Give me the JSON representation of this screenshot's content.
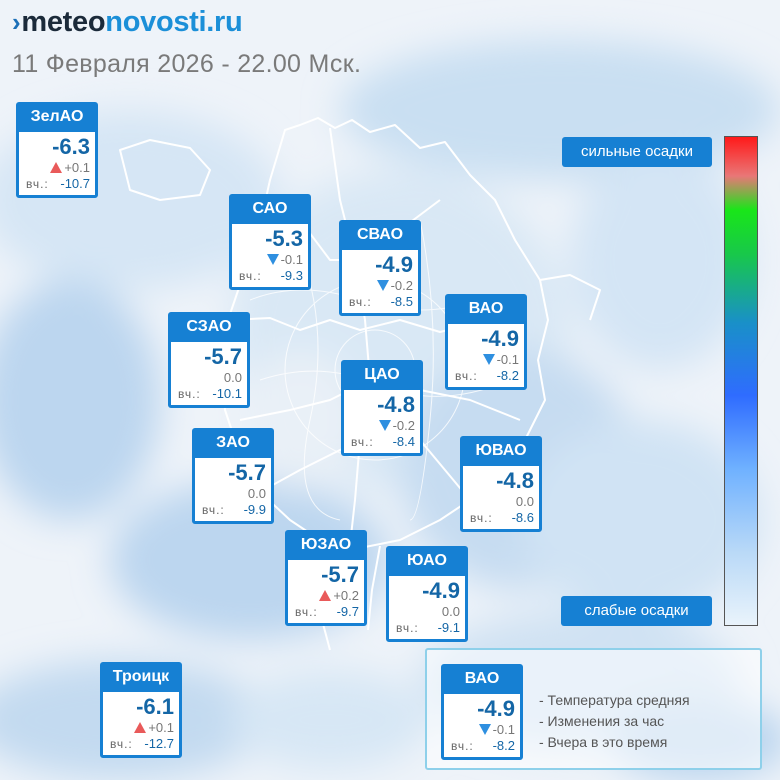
{
  "header": {
    "logo_prefix": "meteo",
    "logo_suffix": "novosti.ru",
    "datetime": "11 Февраля 2026 - 22.00 Мск."
  },
  "yesterday_label": "вч.:",
  "districts": [
    {
      "name": "ЗелАО",
      "temp": "-6.3",
      "trend": "up",
      "change": "+0.1",
      "yesterday": "-10.7"
    },
    {
      "name": "САО",
      "temp": "-5.3",
      "trend": "down",
      "change": "-0.1",
      "yesterday": "-9.3"
    },
    {
      "name": "СВАО",
      "temp": "-4.9",
      "trend": "down",
      "change": "-0.2",
      "yesterday": "-8.5"
    },
    {
      "name": "ВАО",
      "temp": "-4.9",
      "trend": "down",
      "change": "-0.1",
      "yesterday": "-8.2"
    },
    {
      "name": "СЗАО",
      "temp": "-5.7",
      "trend": "none",
      "change": "0.0",
      "yesterday": "-10.1"
    },
    {
      "name": "ЦАО",
      "temp": "-4.8",
      "trend": "down",
      "change": "-0.2",
      "yesterday": "-8.4"
    },
    {
      "name": "ЗАО",
      "temp": "-5.7",
      "trend": "none",
      "change": "0.0",
      "yesterday": "-9.9"
    },
    {
      "name": "ЮВАО",
      "temp": "-4.8",
      "trend": "none",
      "change": "0.0",
      "yesterday": "-8.6"
    },
    {
      "name": "ЮЗАО",
      "temp": "-5.7",
      "trend": "up",
      "change": "+0.2",
      "yesterday": "-9.7"
    },
    {
      "name": "ЮАО",
      "temp": "-4.9",
      "trend": "none",
      "change": "0.0",
      "yesterday": "-9.1"
    },
    {
      "name": "Троицк",
      "temp": "-6.1",
      "trend": "up",
      "change": "+0.1",
      "yesterday": "-12.7"
    }
  ],
  "scale": {
    "top_label": "сильные осадки",
    "bottom_label": "слабые осадки"
  },
  "legend": {
    "sample": {
      "name": "ВАО",
      "temp": "-4.9",
      "trend": "down",
      "change": "-0.1",
      "yesterday": "-8.2"
    },
    "line1": "- Температура средняя",
    "line2": "- Изменения за час",
    "line3": "- Вчера в это время"
  },
  "colors": {
    "accent": "#1680d3",
    "temp_text": "#1466a6",
    "trend_up": "#e95a5a",
    "trend_down": "#2e8fe0"
  }
}
